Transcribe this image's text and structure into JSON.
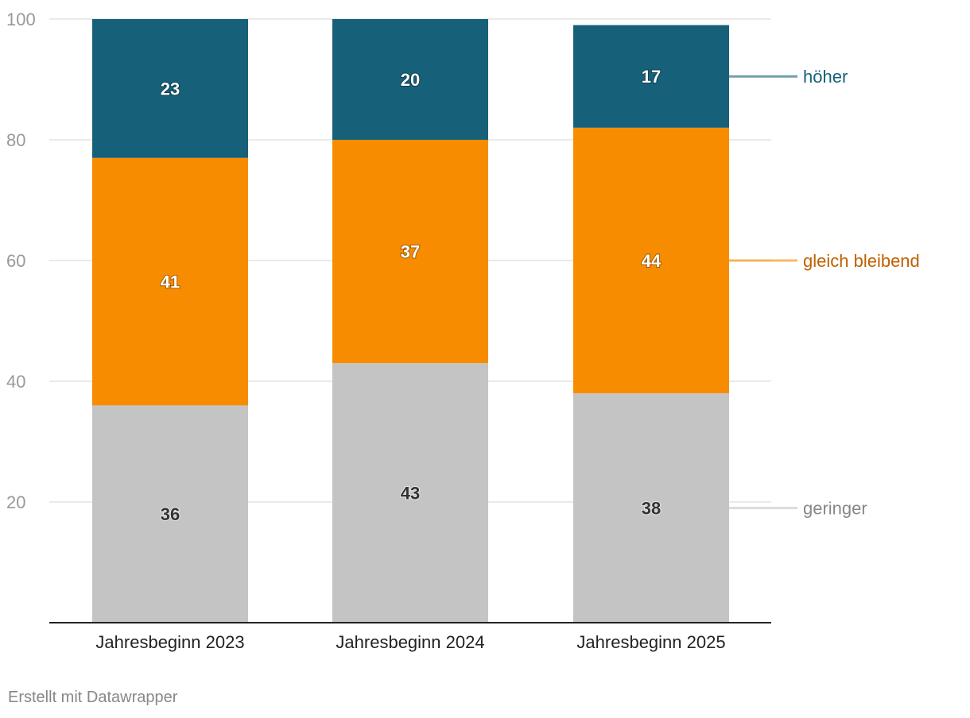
{
  "chart_data": {
    "type": "bar",
    "stacked": true,
    "categories": [
      "Jahresbeginn 2023",
      "Jahresbeginn 2024",
      "Jahresbeginn 2025"
    ],
    "series": [
      {
        "name": "geringer",
        "values": [
          36,
          43,
          38
        ],
        "color": "#c4c4c4",
        "label_color": "#888888",
        "value_text_color": "#333333"
      },
      {
        "name": "gleich bleibend",
        "values": [
          41,
          37,
          44
        ],
        "color": "#f78c00",
        "label_color": "#c06000",
        "value_text_color": "#ffffff"
      },
      {
        "name": "höher",
        "values": [
          23,
          20,
          17
        ],
        "color": "#17607a",
        "label_color": "#17607a",
        "value_text_color": "#ffffff"
      }
    ],
    "yticks": [
      20,
      40,
      60,
      80,
      100
    ],
    "ylim": [
      0,
      100
    ],
    "grid": true,
    "legend": "right, inline labels",
    "title": "",
    "xlabel": "",
    "ylabel": ""
  },
  "footer": {
    "credit": "Erstellt mit Datawrapper"
  }
}
